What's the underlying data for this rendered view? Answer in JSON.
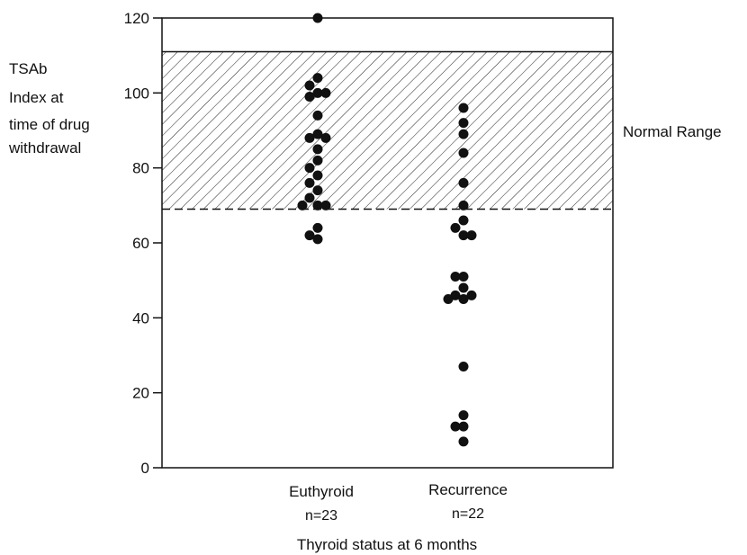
{
  "chart_data": {
    "type": "scatter",
    "title": "",
    "ylabel_lines": [
      "TSAb",
      "Index at",
      "time of drug",
      "withdrawal"
    ],
    "xlabel": "Thyroid status at 6 months",
    "ylim": [
      0,
      120
    ],
    "yticks": [
      0,
      20,
      40,
      60,
      80,
      100,
      120
    ],
    "normal_range": {
      "label": "Normal Range",
      "low": 69,
      "high": 111
    },
    "categories": [
      {
        "name": "Euthyroid",
        "n_label": "n=23"
      },
      {
        "name": "Recurrence",
        "n_label": "n=22"
      }
    ],
    "series": [
      {
        "name": "Euthyroid",
        "values": [
          120,
          104,
          102,
          100,
          100,
          99,
          94,
          89,
          88,
          88,
          85,
          82,
          80,
          78,
          76,
          74,
          72,
          70,
          70,
          70,
          64,
          62,
          61
        ]
      },
      {
        "name": "Recurrence",
        "values": [
          96,
          92,
          89,
          84,
          76,
          70,
          66,
          64,
          62,
          62,
          51,
          51,
          48,
          46,
          46,
          45,
          45,
          27,
          14,
          11,
          11,
          7
        ]
      }
    ]
  }
}
